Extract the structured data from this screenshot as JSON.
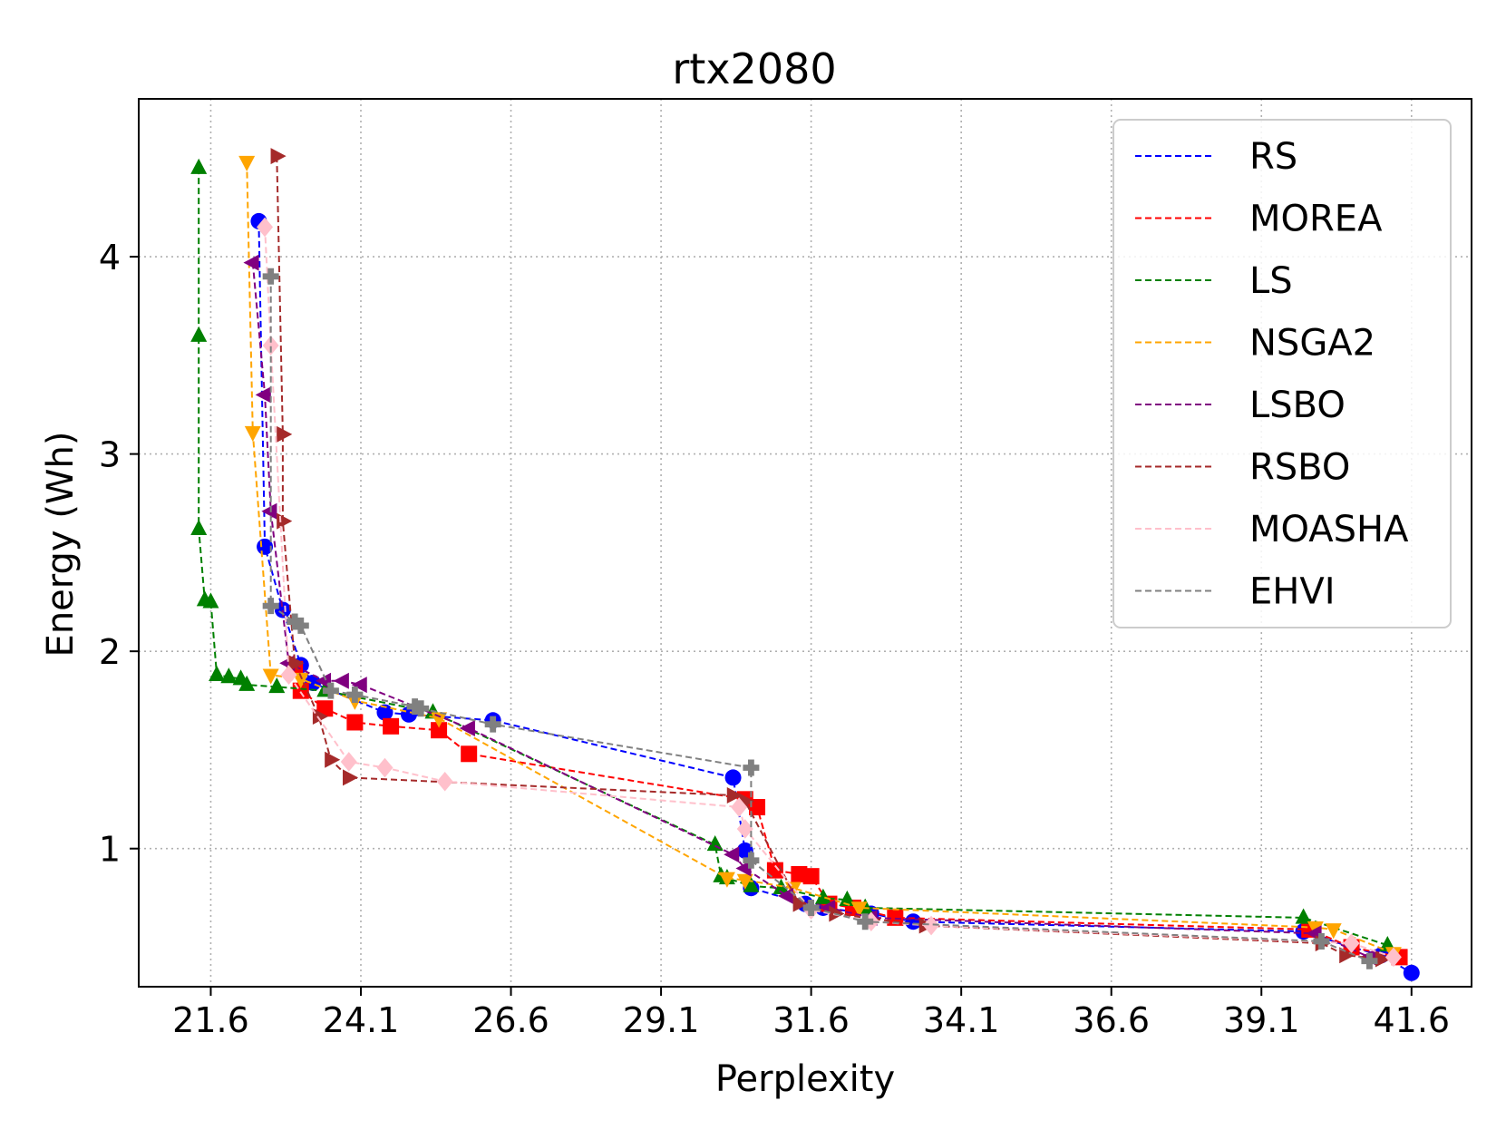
{
  "chart_data": {
    "type": "line",
    "title": "rtx2080",
    "xlabel": "Perplexity",
    "ylabel": "Energy (Wh)",
    "xlim": [
      20.4,
      42.6
    ],
    "ylim": [
      0.3,
      4.8
    ],
    "xticks": [
      21.6,
      24.1,
      26.6,
      29.1,
      31.6,
      34.1,
      36.6,
      39.1,
      41.6
    ],
    "xtick_labels": [
      "21.6",
      "24.1",
      "26.6",
      "29.1",
      "31.6",
      "34.1",
      "36.6",
      "39.1",
      "41.6"
    ],
    "yticks": [
      1,
      2,
      3,
      4
    ],
    "ytick_labels": [
      "1",
      "2",
      "3",
      "4"
    ],
    "grid": true,
    "legend_position": "top-right",
    "series": [
      {
        "name": "RS",
        "color": "#0000ff",
        "marker": "circle",
        "x": [
          22.4,
          22.5,
          22.8,
          23.1,
          23.3,
          24.5,
          24.9,
          26.3,
          30.3,
          30.5,
          30.6,
          31.5,
          31.8,
          32.6,
          33.3,
          39.8,
          40.6,
          41.1,
          41.6
        ],
        "y": [
          4.18,
          2.53,
          2.21,
          1.93,
          1.84,
          1.69,
          1.68,
          1.65,
          1.36,
          0.99,
          0.8,
          0.72,
          0.7,
          0.67,
          0.63,
          0.58,
          0.5,
          0.46,
          0.37
        ]
      },
      {
        "name": "MOREA",
        "color": "#ff0000",
        "marker": "square",
        "x": [
          23.0,
          23.1,
          23.5,
          24.0,
          24.6,
          25.4,
          25.9,
          30.5,
          30.7,
          31.0,
          31.4,
          31.6,
          31.9,
          32.3,
          33.0,
          39.9,
          40.6,
          41.4
        ],
        "y": [
          1.91,
          1.8,
          1.71,
          1.64,
          1.62,
          1.6,
          1.48,
          1.25,
          1.21,
          0.89,
          0.87,
          0.86,
          0.72,
          0.7,
          0.65,
          0.59,
          0.5,
          0.45
        ]
      },
      {
        "name": "LS",
        "color": "#008000",
        "marker": "triangle-up",
        "x": [
          21.4,
          21.4,
          21.4,
          21.5,
          21.6,
          21.7,
          21.9,
          22.1,
          22.2,
          22.7,
          23.5,
          25.3,
          30.0,
          30.1,
          30.2,
          30.6,
          31.1,
          31.8,
          32.2,
          32.5,
          39.8,
          41.2
        ],
        "y": [
          4.45,
          3.6,
          2.62,
          2.26,
          2.25,
          1.88,
          1.87,
          1.86,
          1.83,
          1.82,
          1.8,
          1.69,
          1.02,
          0.86,
          0.85,
          0.81,
          0.8,
          0.75,
          0.74,
          0.7,
          0.65,
          0.51
        ]
      },
      {
        "name": "NSGA2",
        "color": "#ffa500",
        "marker": "triangle-down",
        "x": [
          22.2,
          22.3,
          22.6,
          23.1,
          24.0,
          25.4,
          30.2,
          30.5,
          31.3,
          32.4,
          40.0,
          40.3,
          41.3
        ],
        "y": [
          4.48,
          3.11,
          1.88,
          1.86,
          1.75,
          1.66,
          0.85,
          0.84,
          0.8,
          0.7,
          0.6,
          0.59,
          0.47
        ]
      },
      {
        "name": "LSBO",
        "color": "#800080",
        "marker": "triangle-left",
        "x": [
          22.3,
          22.5,
          22.6,
          22.9,
          23.5,
          23.8,
          24.1,
          25.9,
          30.3,
          30.5,
          31.2,
          31.9,
          32.6,
          40.0,
          40.9
        ],
        "y": [
          3.97,
          3.3,
          2.71,
          1.94,
          1.85,
          1.85,
          1.83,
          1.61,
          0.97,
          0.9,
          0.76,
          0.7,
          0.65,
          0.57,
          0.45
        ]
      },
      {
        "name": "RSBO",
        "color": "#a52a2a",
        "marker": "triangle-right",
        "x": [
          22.7,
          22.8,
          22.8,
          23.0,
          23.4,
          23.6,
          23.9,
          30.3,
          30.5,
          31.4,
          32.0,
          33.5,
          40.1,
          40.5,
          41.1
        ],
        "y": [
          4.51,
          3.1,
          2.66,
          1.94,
          1.67,
          1.45,
          1.36,
          1.27,
          1.24,
          0.72,
          0.67,
          0.61,
          0.52,
          0.46,
          0.44
        ]
      },
      {
        "name": "MOASHA",
        "color": "#ffc0cb",
        "marker": "diamond",
        "x": [
          22.5,
          22.6,
          22.9,
          23.9,
          24.5,
          25.5,
          30.4,
          30.5,
          31.6,
          32.6,
          33.6,
          40.6,
          41.3
        ],
        "y": [
          4.15,
          3.55,
          1.88,
          1.44,
          1.41,
          1.34,
          1.21,
          1.1,
          0.69,
          0.63,
          0.61,
          0.52,
          0.45
        ]
      },
      {
        "name": "EHVI",
        "color": "#808080",
        "marker": "plus",
        "x": [
          22.6,
          22.6,
          23.0,
          23.1,
          23.6,
          24.0,
          25.0,
          25.1,
          26.3,
          30.6,
          30.6,
          31.6,
          32.5,
          40.1,
          40.9
        ],
        "y": [
          3.9,
          2.23,
          2.15,
          2.13,
          1.8,
          1.78,
          1.72,
          1.71,
          1.63,
          1.41,
          0.94,
          0.7,
          0.63,
          0.53,
          0.43
        ]
      }
    ]
  }
}
